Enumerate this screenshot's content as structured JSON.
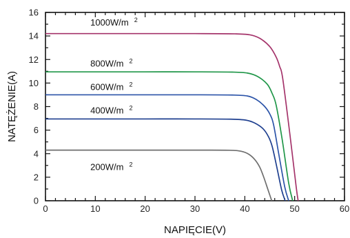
{
  "chart_data": {
    "type": "line",
    "xlabel": "NAPIĘCIE(V)",
    "ylabel": "NATĘŻENIE(A)",
    "xlim": [
      0,
      60
    ],
    "ylim": [
      0,
      16
    ],
    "xticks": [
      0,
      10,
      20,
      30,
      40,
      50,
      60
    ],
    "yticks": [
      0,
      2,
      4,
      6,
      8,
      10,
      12,
      14,
      16
    ],
    "grid": false,
    "series": [
      {
        "name": "1000W/m 2",
        "label_main": "1000W/m",
        "label_sup": "2",
        "label_at": [
          9,
          14.9
        ],
        "color": "#a4336a",
        "x": [
          0,
          10,
          20,
          30,
          38,
          41,
          43,
          45,
          46.3,
          47,
          47.6,
          49,
          50.3,
          50.7
        ],
        "y": [
          14.2,
          14.2,
          14.2,
          14.2,
          14.18,
          14.1,
          13.8,
          13.1,
          12.2,
          11.4,
          10.4,
          5.8,
          1.2,
          0
        ]
      },
      {
        "name": "800W/m 2",
        "label_main": "800W/m",
        "label_sup": "2",
        "label_at": [
          9,
          11.4
        ],
        "color": "#1f9648",
        "x": [
          0,
          10,
          20,
          30,
          37.5,
          40.5,
          42.6,
          44.5,
          45.5,
          46.3,
          47.5,
          48.8,
          49.6
        ],
        "y": [
          10.95,
          10.95,
          10.95,
          10.95,
          10.93,
          10.85,
          10.55,
          9.9,
          9.1,
          8.1,
          5.2,
          1.5,
          0
        ]
      },
      {
        "name": "600W/m 2",
        "label_main": "600W/m",
        "label_sup": "2",
        "label_at": [
          9,
          9.4
        ],
        "color": "#2b53a8",
        "x": [
          0,
          10,
          20,
          30,
          37.5,
          40.5,
          42.3,
          44,
          45.1,
          45.8,
          46.8,
          48,
          48.8
        ],
        "y": [
          9.0,
          9.0,
          9.0,
          9.0,
          8.98,
          8.9,
          8.6,
          8.0,
          7.3,
          6.4,
          4.0,
          1.2,
          0
        ]
      },
      {
        "name": "400W/m 2",
        "label_main": "400W/m",
        "label_sup": "2",
        "label_at": [
          9,
          7.4
        ],
        "color": "#1e3f8f",
        "x": [
          0,
          10,
          20,
          30,
          37.2,
          40.2,
          42,
          43.7,
          44.8,
          45.5,
          46.4,
          47.4,
          48.1
        ],
        "y": [
          6.95,
          6.95,
          6.95,
          6.95,
          6.93,
          6.85,
          6.6,
          6.1,
          5.4,
          4.6,
          2.9,
          0.9,
          0
        ]
      },
      {
        "name": "200W/m 2",
        "label_main": "200W/m",
        "label_sup": "2",
        "label_at": [
          9,
          2.6
        ],
        "color": "#6e6e6e",
        "x": [
          0,
          10,
          20,
          30,
          37,
          39.3,
          40.8,
          42,
          43,
          43.8,
          44.6,
          45.4
        ],
        "y": [
          4.3,
          4.3,
          4.3,
          4.3,
          4.29,
          4.2,
          3.95,
          3.5,
          2.85,
          2.0,
          1.0,
          0
        ]
      }
    ]
  }
}
